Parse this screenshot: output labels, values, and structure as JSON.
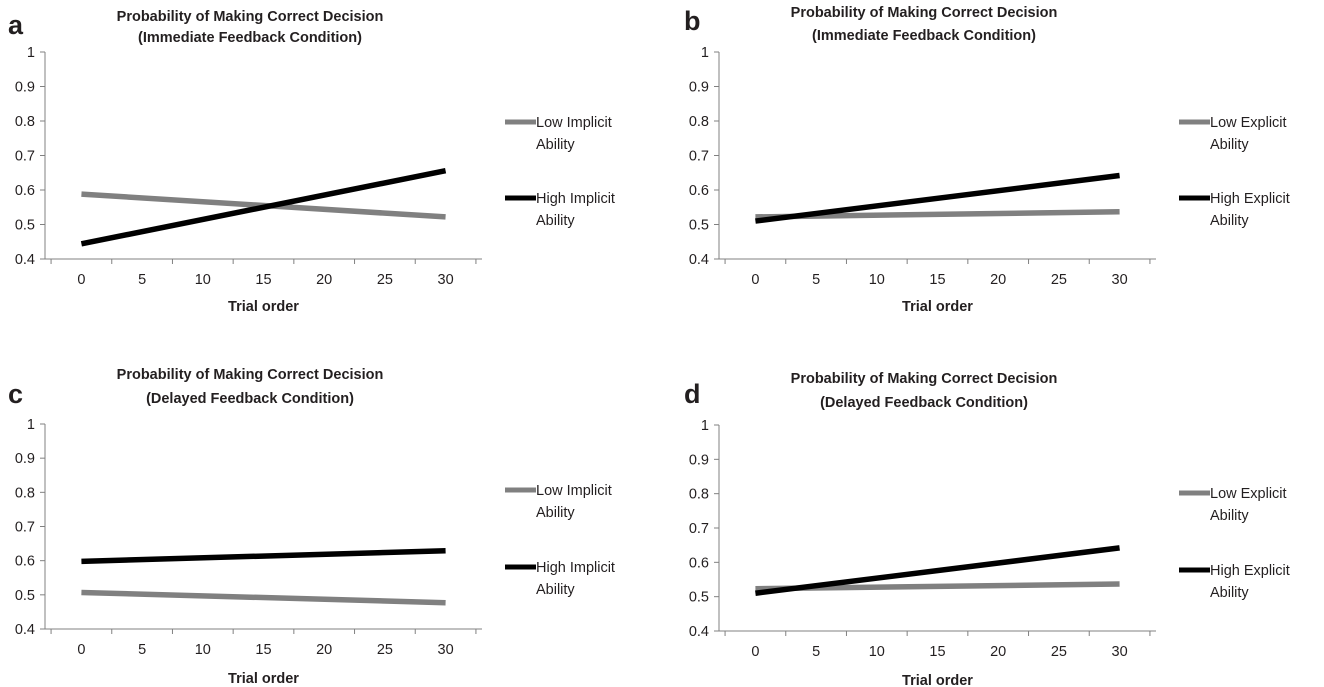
{
  "chart_data": [
    {
      "panel": "a",
      "type": "line",
      "title": [
        "Probability of Making Correct Decision",
        "(Immediate Feedback Condition)"
      ],
      "xlabel": "Trial order",
      "ylabel": "",
      "xlim": [
        -3,
        33
      ],
      "ylim": [
        0.4,
        1
      ],
      "xticks": [
        "0",
        "5",
        "10",
        "15",
        "20",
        "25",
        "30"
      ],
      "yticks": [
        "0.4",
        "0.5",
        "0.6",
        "0.7",
        "0.8",
        "0.9",
        "1"
      ],
      "legend": "right",
      "series": [
        {
          "name": [
            "Low Implicit",
            "Ability"
          ],
          "color": "#808080",
          "x": [
            0,
            30
          ],
          "y": [
            0.588,
            0.522
          ]
        },
        {
          "name": [
            "High Implicit",
            "Ability"
          ],
          "color": "#000000",
          "x": [
            0,
            30
          ],
          "y": [
            0.444,
            0.656
          ]
        }
      ]
    },
    {
      "panel": "b",
      "type": "line",
      "title": [
        "Probability of Making Correct Decision",
        "(Immediate Feedback Condition)"
      ],
      "xlabel": "Trial order",
      "ylabel": "",
      "xlim": [
        -3,
        33
      ],
      "ylim": [
        0.4,
        1
      ],
      "xticks": [
        "0",
        "5",
        "10",
        "15",
        "20",
        "25",
        "30"
      ],
      "yticks": [
        "0.4",
        "0.5",
        "0.6",
        "0.7",
        "0.8",
        "0.9",
        "1"
      ],
      "legend": "right",
      "series": [
        {
          "name": [
            "Low Explicit",
            "Ability"
          ],
          "color": "#808080",
          "x": [
            0,
            30
          ],
          "y": [
            0.522,
            0.537
          ]
        },
        {
          "name": [
            "High Explicit",
            "Ability"
          ],
          "color": "#000000",
          "x": [
            0,
            30
          ],
          "y": [
            0.51,
            0.642
          ]
        }
      ]
    },
    {
      "panel": "c",
      "type": "line",
      "title": [
        "Probability of Making Correct Decision",
        "(Delayed Feedback Condition)"
      ],
      "xlabel": "Trial order",
      "ylabel": "",
      "xlim": [
        -3,
        33
      ],
      "ylim": [
        0.4,
        1
      ],
      "xticks": [
        "0",
        "5",
        "10",
        "15",
        "20",
        "25",
        "30"
      ],
      "yticks": [
        "0.4",
        "0.5",
        "0.6",
        "0.7",
        "0.8",
        "0.9",
        "1"
      ],
      "legend": "right",
      "series": [
        {
          "name": [
            "Low Implicit",
            "Ability"
          ],
          "color": "#808080",
          "x": [
            0,
            30
          ],
          "y": [
            0.507,
            0.477
          ]
        },
        {
          "name": [
            "High Implicit",
            "Ability"
          ],
          "color": "#000000",
          "x": [
            0,
            30
          ],
          "y": [
            0.598,
            0.629
          ]
        }
      ]
    },
    {
      "panel": "d",
      "type": "line",
      "title": [
        "Probability of Making Correct Decision",
        "(Delayed Feedback Condition)"
      ],
      "xlabel": "Trial order",
      "ylabel": "",
      "xlim": [
        -3,
        33
      ],
      "ylim": [
        0.4,
        1
      ],
      "xticks": [
        "0",
        "5",
        "10",
        "15",
        "20",
        "25",
        "30"
      ],
      "yticks": [
        "0.4",
        "0.5",
        "0.6",
        "0.7",
        "0.8",
        "0.9",
        "1"
      ],
      "legend": "right",
      "series": [
        {
          "name": [
            "Low Explicit",
            "Ability"
          ],
          "color": "#808080",
          "x": [
            0,
            30
          ],
          "y": [
            0.523,
            0.537
          ]
        },
        {
          "name": [
            "High Explicit",
            "Ability"
          ],
          "color": "#000000",
          "x": [
            0,
            30
          ],
          "y": [
            0.51,
            0.642
          ]
        }
      ]
    }
  ]
}
